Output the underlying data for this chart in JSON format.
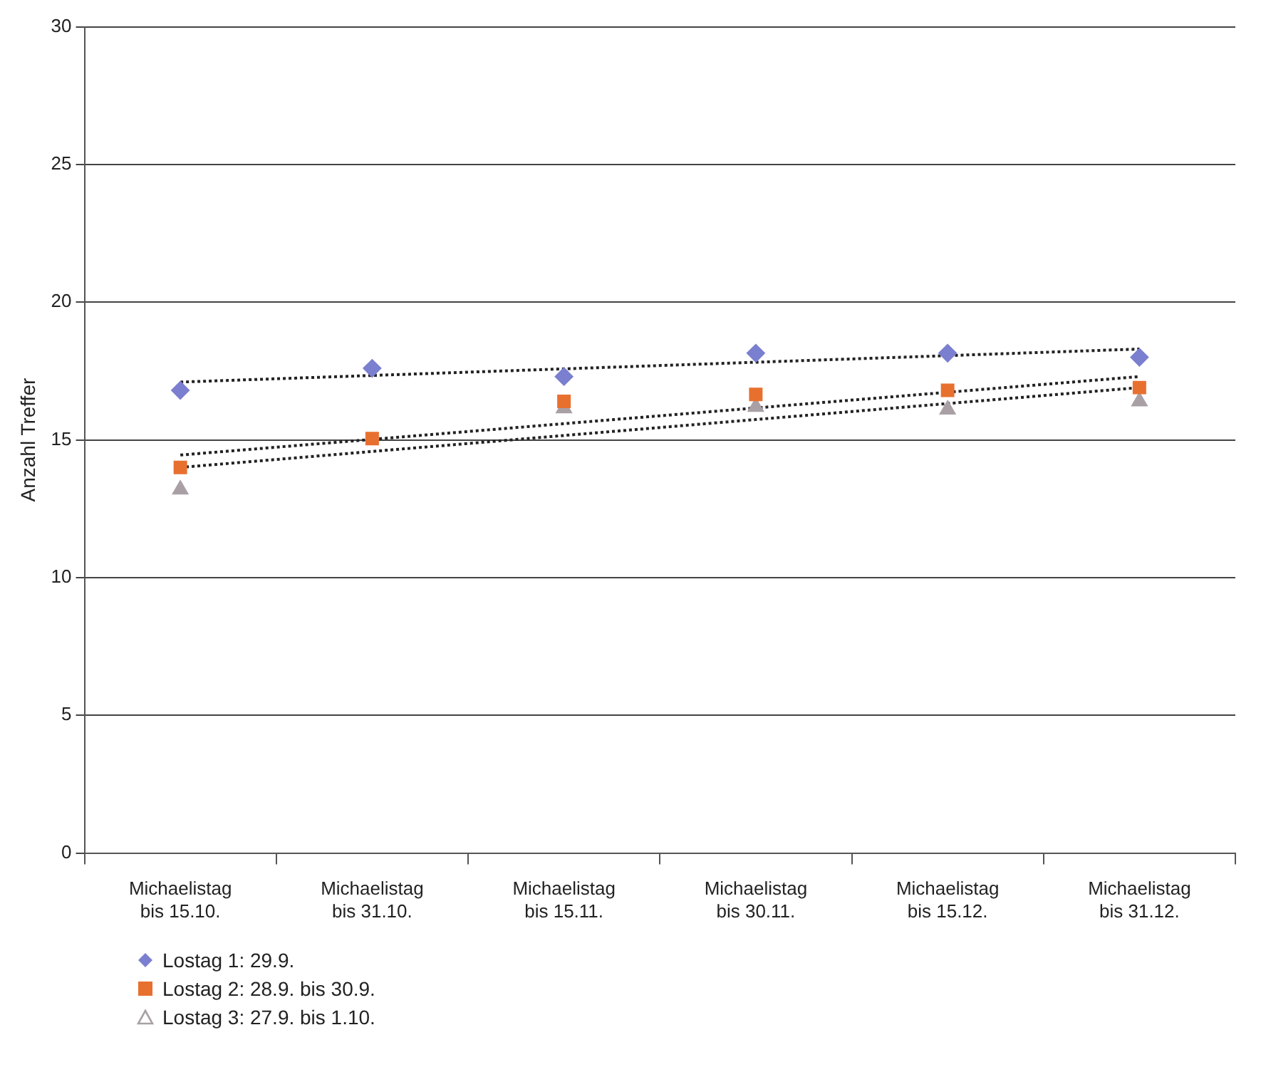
{
  "chart_data": {
    "type": "scatter",
    "ylabel": "Anzahl Treffer",
    "categories": [
      "Michaelistag\nbis 15.10.",
      "Michaelistag\nbis 31.10.",
      "Michaelistag\nbis 15.11.",
      "Michaelistag\nbis 30.11.",
      "Michaelistag\nbis 15.12.",
      "Michaelistag\nbis 31.12."
    ],
    "series": [
      {
        "name": "Lostag 1: 29.9.",
        "color": "#7b7fcf",
        "marker": "diamond",
        "values": [
          16.8,
          17.6,
          17.3,
          18.15,
          18.15,
          18.0
        ]
      },
      {
        "name": "Lostag 2: 28.9. bis 30.9.",
        "color": "#e8702f",
        "marker": "square",
        "values": [
          14.0,
          15.05,
          16.4,
          16.65,
          16.8,
          16.9
        ]
      },
      {
        "name": "Lostag 3: 27.9. bis 1.10.",
        "color": "#a9a0a6",
        "marker": "triangle",
        "values": [
          13.2,
          null,
          16.15,
          16.2,
          16.1,
          16.4
        ]
      },
      {
        "type": "line",
        "color": "#222222",
        "line_style": "dotted",
        "marker": "none",
        "values": [
          17.1,
          null,
          null,
          null,
          null,
          18.3
        ]
      },
      {
        "type": "line",
        "color": "#222222",
        "line_style": "dotted",
        "marker": "none",
        "values": [
          14.45,
          null,
          null,
          null,
          null,
          17.3
        ]
      },
      {
        "type": "line",
        "color": "#222222",
        "line_style": "dotted",
        "marker": "none",
        "values": [
          14.0,
          null,
          null,
          null,
          null,
          16.9
        ]
      }
    ],
    "ylim": [
      0,
      30
    ],
    "yticks": [
      0,
      5,
      10,
      15,
      20,
      25,
      30
    ],
    "grid": "y",
    "legend": "bottom left"
  }
}
